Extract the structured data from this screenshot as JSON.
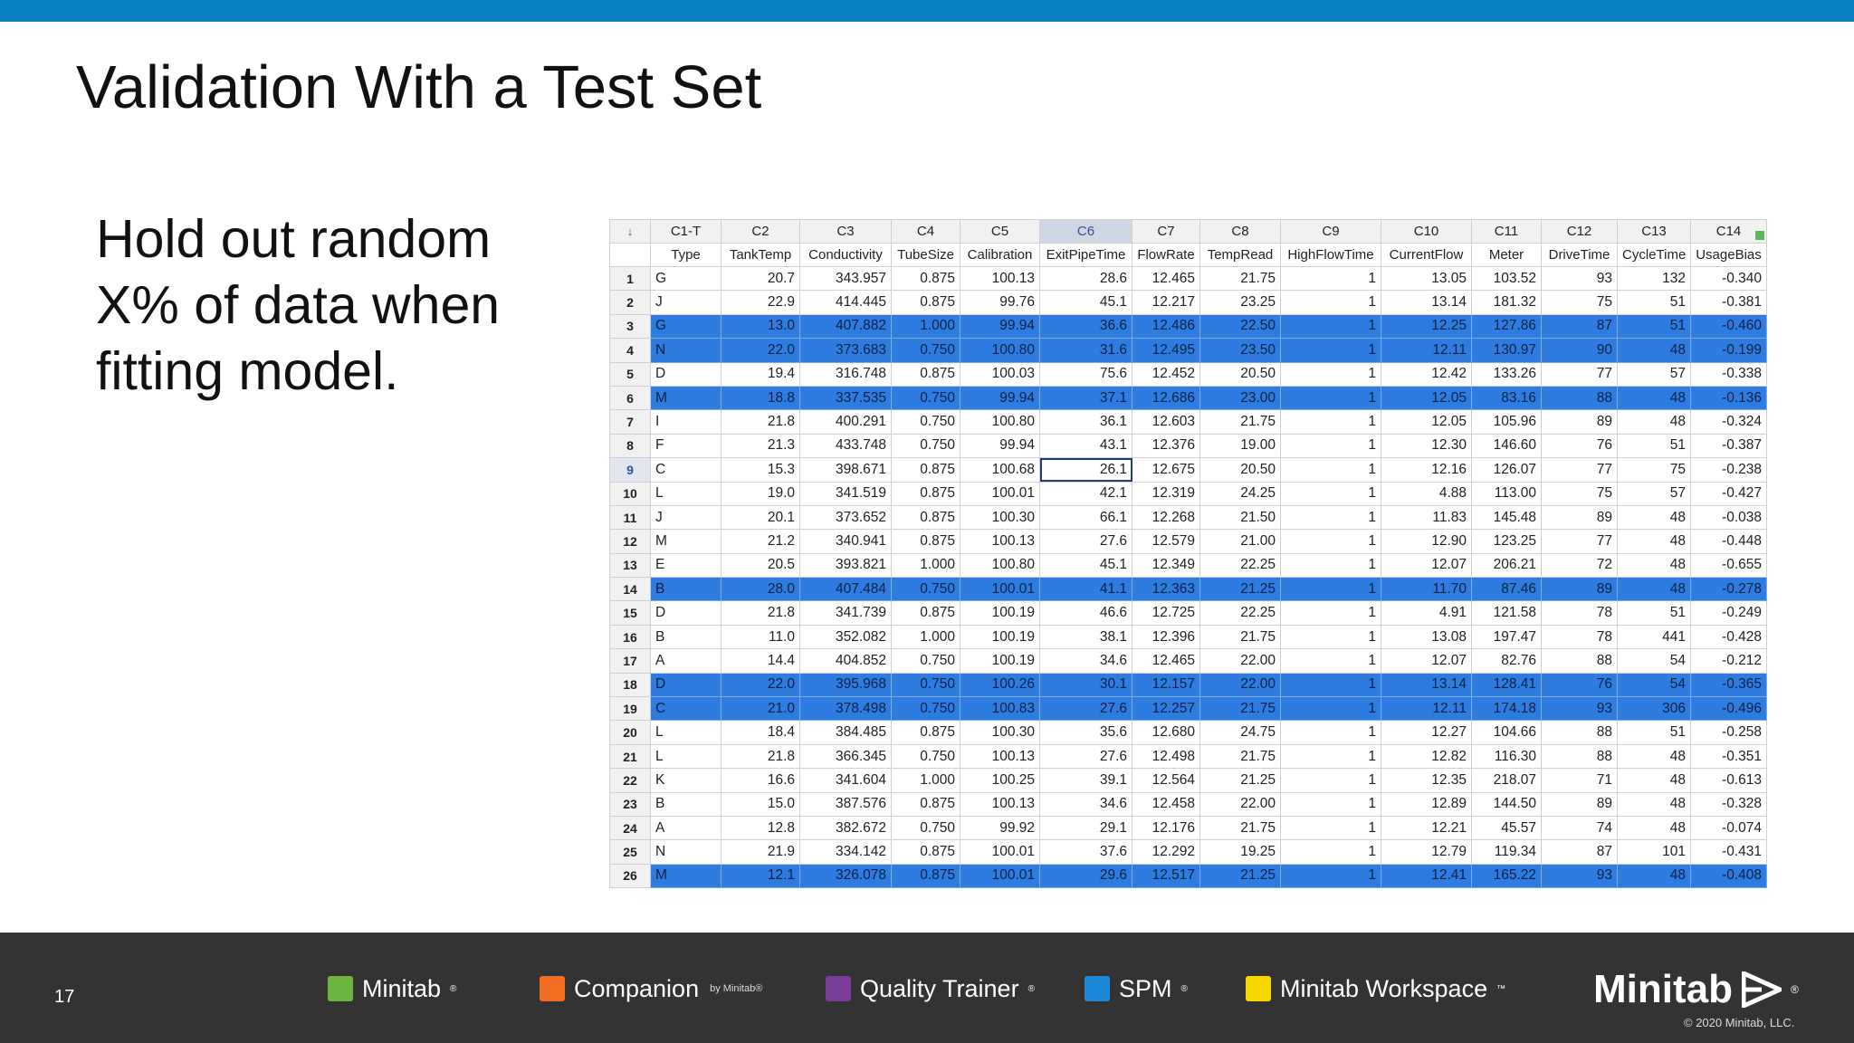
{
  "slide": {
    "title": "Validation With a Test Set",
    "bullet": "Hold out random X% of data when fitting model."
  },
  "worksheet": {
    "corner": "↓",
    "col_ids": [
      "C1-T",
      "C2",
      "C3",
      "C4",
      "C5",
      "C6",
      "C7",
      "C8",
      "C9",
      "C10",
      "C11",
      "C12",
      "C13",
      "C14"
    ],
    "col_names": [
      "Type",
      "TankTemp",
      "Conductivity",
      "TubeSize",
      "Calibration",
      "ExitPipeTime",
      "FlowRate",
      "TempRead",
      "HighFlowTime",
      "CurrentFlow",
      "Meter",
      "DriveTime",
      "CycleTime",
      "UsageBias"
    ],
    "active_column": "C6",
    "active_row": 9,
    "highlighted_rows": [
      3,
      4,
      6,
      14,
      18,
      19,
      26
    ],
    "rows": [
      [
        "1",
        "G",
        "20.7",
        "343.957",
        "0.875",
        "100.13",
        "28.6",
        "12.465",
        "21.75",
        "1",
        "13.05",
        "103.52",
        "93",
        "132",
        "-0.340"
      ],
      [
        "2",
        "J",
        "22.9",
        "414.445",
        "0.875",
        "99.76",
        "45.1",
        "12.217",
        "23.25",
        "1",
        "13.14",
        "181.32",
        "75",
        "51",
        "-0.381"
      ],
      [
        "3",
        "G",
        "13.0",
        "407.882",
        "1.000",
        "99.94",
        "36.6",
        "12.486",
        "22.50",
        "1",
        "12.25",
        "127.86",
        "87",
        "51",
        "-0.460"
      ],
      [
        "4",
        "N",
        "22.0",
        "373.683",
        "0.750",
        "100.80",
        "31.6",
        "12.495",
        "23.50",
        "1",
        "12.11",
        "130.97",
        "90",
        "48",
        "-0.199"
      ],
      [
        "5",
        "D",
        "19.4",
        "316.748",
        "0.875",
        "100.03",
        "75.6",
        "12.452",
        "20.50",
        "1",
        "12.42",
        "133.26",
        "77",
        "57",
        "-0.338"
      ],
      [
        "6",
        "M",
        "18.8",
        "337.535",
        "0.750",
        "99.94",
        "37.1",
        "12.686",
        "23.00",
        "1",
        "12.05",
        "83.16",
        "88",
        "48",
        "-0.136"
      ],
      [
        "7",
        "I",
        "21.8",
        "400.291",
        "0.750",
        "100.80",
        "36.1",
        "12.603",
        "21.75",
        "1",
        "12.05",
        "105.96",
        "89",
        "48",
        "-0.324"
      ],
      [
        "8",
        "F",
        "21.3",
        "433.748",
        "0.750",
        "99.94",
        "43.1",
        "12.376",
        "19.00",
        "1",
        "12.30",
        "146.60",
        "76",
        "51",
        "-0.387"
      ],
      [
        "9",
        "C",
        "15.3",
        "398.671",
        "0.875",
        "100.68",
        "26.1",
        "12.675",
        "20.50",
        "1",
        "12.16",
        "126.07",
        "77",
        "75",
        "-0.238"
      ],
      [
        "10",
        "L",
        "19.0",
        "341.519",
        "0.875",
        "100.01",
        "42.1",
        "12.319",
        "24.25",
        "1",
        "4.88",
        "113.00",
        "75",
        "57",
        "-0.427"
      ],
      [
        "11",
        "J",
        "20.1",
        "373.652",
        "0.875",
        "100.30",
        "66.1",
        "12.268",
        "21.50",
        "1",
        "11.83",
        "145.48",
        "89",
        "48",
        "-0.038"
      ],
      [
        "12",
        "M",
        "21.2",
        "340.941",
        "0.875",
        "100.13",
        "27.6",
        "12.579",
        "21.00",
        "1",
        "12.90",
        "123.25",
        "77",
        "48",
        "-0.448"
      ],
      [
        "13",
        "E",
        "20.5",
        "393.821",
        "1.000",
        "100.80",
        "45.1",
        "12.349",
        "22.25",
        "1",
        "12.07",
        "206.21",
        "72",
        "48",
        "-0.655"
      ],
      [
        "14",
        "B",
        "28.0",
        "407.484",
        "0.750",
        "100.01",
        "41.1",
        "12.363",
        "21.25",
        "1",
        "11.70",
        "87.46",
        "89",
        "48",
        "-0.278"
      ],
      [
        "15",
        "D",
        "21.8",
        "341.739",
        "0.875",
        "100.19",
        "46.6",
        "12.725",
        "22.25",
        "1",
        "4.91",
        "121.58",
        "78",
        "51",
        "-0.249"
      ],
      [
        "16",
        "B",
        "11.0",
        "352.082",
        "1.000",
        "100.19",
        "38.1",
        "12.396",
        "21.75",
        "1",
        "13.08",
        "197.47",
        "78",
        "441",
        "-0.428"
      ],
      [
        "17",
        "A",
        "14.4",
        "404.852",
        "0.750",
        "100.19",
        "34.6",
        "12.465",
        "22.00",
        "1",
        "12.07",
        "82.76",
        "88",
        "54",
        "-0.212"
      ],
      [
        "18",
        "D",
        "22.0",
        "395.968",
        "0.750",
        "100.26",
        "30.1",
        "12.157",
        "22.00",
        "1",
        "13.14",
        "128.41",
        "76",
        "54",
        "-0.365"
      ],
      [
        "19",
        "C",
        "21.0",
        "378.498",
        "0.750",
        "100.83",
        "27.6",
        "12.257",
        "21.75",
        "1",
        "12.11",
        "174.18",
        "93",
        "306",
        "-0.496"
      ],
      [
        "20",
        "L",
        "18.4",
        "384.485",
        "0.875",
        "100.30",
        "35.6",
        "12.680",
        "24.75",
        "1",
        "12.27",
        "104.66",
        "88",
        "51",
        "-0.258"
      ],
      [
        "21",
        "L",
        "21.8",
        "366.345",
        "0.750",
        "100.13",
        "27.6",
        "12.498",
        "21.75",
        "1",
        "12.82",
        "116.30",
        "88",
        "48",
        "-0.351"
      ],
      [
        "22",
        "K",
        "16.6",
        "341.604",
        "1.000",
        "100.25",
        "39.1",
        "12.564",
        "21.25",
        "1",
        "12.35",
        "218.07",
        "71",
        "48",
        "-0.613"
      ],
      [
        "23",
        "B",
        "15.0",
        "387.576",
        "0.875",
        "100.13",
        "34.6",
        "12.458",
        "22.00",
        "1",
        "12.89",
        "144.50",
        "89",
        "48",
        "-0.328"
      ],
      [
        "24",
        "A",
        "12.8",
        "382.672",
        "0.750",
        "99.92",
        "29.1",
        "12.176",
        "21.75",
        "1",
        "12.21",
        "45.57",
        "74",
        "48",
        "-0.074"
      ],
      [
        "25",
        "N",
        "21.9",
        "334.142",
        "0.875",
        "100.01",
        "37.6",
        "12.292",
        "19.25",
        "1",
        "12.79",
        "119.34",
        "87",
        "101",
        "-0.431"
      ],
      [
        "26",
        "M",
        "12.1",
        "326.078",
        "0.875",
        "100.01",
        "29.6",
        "12.517",
        "21.25",
        "1",
        "12.41",
        "165.22",
        "93",
        "48",
        "-0.408"
      ]
    ]
  },
  "footer": {
    "page_number": "17",
    "products": [
      {
        "name": "Minitab",
        "mark": "®",
        "icon": "minitab-bars-icon",
        "color": "#6cb33f"
      },
      {
        "name": "Companion",
        "suffix": "by Minitab®",
        "icon": "companion-icon",
        "color": "#f26d21"
      },
      {
        "name": "Quality Trainer",
        "mark": "®",
        "icon": "quality-trainer-icon",
        "color": "#7a3d97"
      },
      {
        "name": "SPM",
        "mark": "®",
        "icon": "spm-icon",
        "color": "#1c8ad8"
      },
      {
        "name": "Minitab Workspace",
        "mark": "™",
        "icon": "workspace-icon",
        "color": "#f5d800"
      }
    ],
    "brand": "Minitab",
    "brand_mark": "®",
    "copyright": "© 2020 Minitab, LLC."
  },
  "colors": {
    "top_bar": "#0b7fc3",
    "highlight_row": "#2f7ce0",
    "footer_bg": "#333333"
  }
}
